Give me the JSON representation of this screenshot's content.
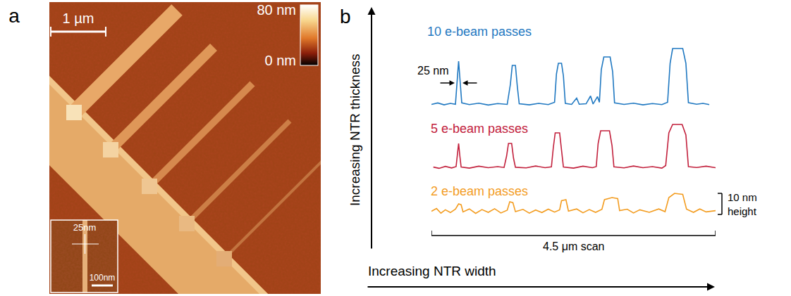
{
  "chart_data": [
    {
      "type": "line",
      "title": "10 e-beam passes",
      "color": "#1f78c1",
      "tick_labels": false,
      "xlim": [
        0,
        4.5
      ],
      "ylim": [
        -4,
        31
      ],
      "x": [
        0,
        0.1,
        0.2,
        0.3,
        0.38,
        0.4,
        0.43,
        0.46,
        0.48,
        0.6,
        0.75,
        0.9,
        1.05,
        1.2,
        1.25,
        1.28,
        1.33,
        1.36,
        1.39,
        1.55,
        1.7,
        1.85,
        1.95,
        1.98,
        2.01,
        2.06,
        2.09,
        2.12,
        2.22,
        2.3,
        2.34,
        2.45,
        2.52,
        2.56,
        2.63,
        2.66,
        2.69,
        2.73,
        2.83,
        2.87,
        2.9,
        3.05,
        3.2,
        3.35,
        3.5,
        3.65,
        3.74,
        3.78,
        3.82,
        3.98,
        4.03,
        4.07,
        4.2,
        4.3,
        4.4
      ],
      "values": [
        0.5,
        1.2,
        0.3,
        1.0,
        0.6,
        8,
        21,
        9,
        1.2,
        0.4,
        1.1,
        0.2,
        0.9,
        0.5,
        10,
        19,
        19,
        9,
        0.8,
        0.3,
        1.0,
        0.4,
        1.5,
        15,
        20,
        20,
        14,
        1.0,
        0.5,
        3.5,
        0.6,
        0.8,
        4.5,
        0.7,
        4.2,
        1.5,
        17,
        23,
        23,
        16,
        1.2,
        0.5,
        1.1,
        0.3,
        0.9,
        0.4,
        1.5,
        20,
        27,
        27,
        20,
        1.3,
        0.6,
        1.0,
        0.4
      ]
    },
    {
      "type": "line",
      "title": "5 e-beam passes",
      "color": "#c2203c",
      "tick_labels": false,
      "xlim": [
        0,
        4.5
      ],
      "ylim": [
        -4,
        24
      ],
      "x": [
        0.03,
        0.12,
        0.22,
        0.32,
        0.39,
        0.41,
        0.43,
        0.45,
        0.47,
        0.6,
        0.75,
        0.9,
        1.05,
        1.15,
        1.19,
        1.22,
        1.27,
        1.3,
        1.33,
        1.5,
        1.65,
        1.8,
        1.9,
        1.93,
        1.96,
        2.03,
        2.06,
        2.09,
        2.25,
        2.4,
        2.55,
        2.61,
        2.64,
        2.68,
        2.82,
        2.86,
        2.89,
        3.05,
        3.2,
        3.35,
        3.5,
        3.65,
        3.71,
        3.76,
        3.82,
        3.97,
        4.03,
        4.07,
        4.2,
        4.35,
        4.5
      ],
      "values": [
        0.8,
        0.2,
        1.1,
        0.4,
        1.0,
        7,
        12,
        6,
        0.8,
        0.3,
        1.2,
        0.5,
        1.0,
        0.6,
        6,
        12,
        12,
        5,
        0.7,
        0.4,
        1.3,
        0.5,
        0.9,
        10,
        17,
        17,
        9,
        0.8,
        0.3,
        1.2,
        0.5,
        1.0,
        12,
        18,
        18,
        11,
        0.9,
        0.4,
        1.3,
        0.5,
        1.0,
        0.3,
        1.5,
        17,
        21,
        21,
        16,
        1.0,
        0.6,
        1.2,
        0.5
      ]
    },
    {
      "type": "line",
      "title": "2 e-beam passes",
      "color": "#f39c1f",
      "tick_labels": false,
      "xlim": [
        0,
        4.5
      ],
      "ylim": [
        -4,
        12
      ],
      "x": [
        0,
        0.08,
        0.15,
        0.22,
        0.3,
        0.38,
        0.43,
        0.47,
        0.5,
        0.6,
        0.7,
        0.8,
        0.9,
        1.0,
        1.1,
        1.2,
        1.24,
        1.29,
        1.33,
        1.45,
        1.55,
        1.65,
        1.75,
        1.85,
        1.95,
        2.03,
        2.06,
        2.13,
        2.17,
        2.3,
        2.4,
        2.5,
        2.6,
        2.7,
        2.74,
        2.86,
        2.95,
        2.98,
        3.1,
        3.2,
        3.3,
        3.45,
        3.6,
        3.7,
        3.76,
        3.85,
        3.98,
        4.04,
        4.15,
        4.25,
        4.35,
        4.5
      ],
      "values": [
        1.5,
        2.8,
        0.6,
        2.2,
        0.9,
        2.5,
        5,
        4.6,
        1.2,
        2.6,
        0.5,
        2.3,
        1.0,
        2.7,
        0.7,
        2.0,
        6,
        5.6,
        1.3,
        2.4,
        0.6,
        2.1,
        0.9,
        2.5,
        1.1,
        2.2,
        6.5,
        7,
        1.6,
        2.6,
        0.8,
        2.3,
        1.0,
        2.4,
        7,
        8,
        7.5,
        1.8,
        2.5,
        0.7,
        2.2,
        1.0,
        2.6,
        1.3,
        8,
        10,
        9.5,
        2.5,
        1.0,
        2.6,
        1.2,
        1.8
      ]
    }
  ],
  "panel_a": {
    "letter": "a",
    "scale_bar": "1 µm",
    "colorbar": {
      "range": [
        0,
        80
      ],
      "ticks": [
        {
          "value": 80,
          "label": "80 nm"
        },
        {
          "value": 0,
          "label": "0 nm"
        }
      ]
    },
    "inset": {
      "label": "25nm",
      "scale_bar": "100nm"
    }
  },
  "panel_b": {
    "letter": "b",
    "y_label": "Increasing NTR thickness",
    "x_label": "Increasing NTR width",
    "width_marker": "25 nm",
    "height_scale": {
      "value": 10,
      "label": [
        "10 nm",
        "height"
      ]
    },
    "scan_bar": {
      "value": 4.5,
      "label": "4.5 μm scan"
    }
  }
}
